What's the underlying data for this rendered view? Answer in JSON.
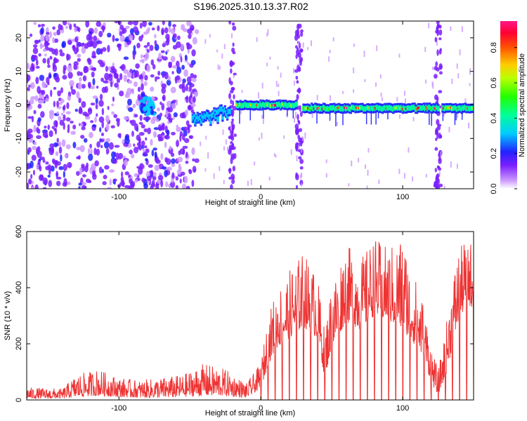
{
  "title": "S196.2025.310.13.37.R02",
  "chart_data": [
    {
      "type": "heatmap",
      "xlabel": "Height of straight line (km)",
      "ylabel": "Frequency (Hz)",
      "xlim": [
        -165,
        150
      ],
      "ylim": [
        -25,
        25
      ],
      "x_ticks": [
        -100,
        0,
        100
      ],
      "y_ticks": [
        -20,
        -10,
        0,
        10,
        20
      ],
      "colorbar": {
        "label": "Normalized spectral amplitude",
        "range": [
          0,
          0.95
        ],
        "ticks": [
          0,
          0.2,
          0.4,
          0.6,
          0.8
        ]
      },
      "noise_region": [
        -165,
        -45
      ],
      "signal_segments": [
        {
          "x": [
            -48,
            -22
          ],
          "freq": [
            -5,
            -2
          ],
          "level": 0.3
        },
        {
          "x": [
            -17,
            25
          ],
          "freq": [
            0,
            0
          ],
          "level": 0.9
        },
        {
          "x": [
            30,
            125
          ],
          "freq": [
            -1,
            -1
          ],
          "level": 0.85
        },
        {
          "x": [
            128,
            150
          ],
          "freq": [
            -1,
            -1
          ],
          "level": 0.9
        }
      ],
      "blob_cluster": {
        "x": [
          -85,
          -75
        ],
        "freq": [
          -3,
          3
        ],
        "level": 0.35
      },
      "vertical_stripes": [
        -20,
        27,
        125
      ]
    },
    {
      "type": "line",
      "xlabel": "Height of straight line (km)",
      "ylabel": "SNR (10 * v/v)",
      "xlim": [
        -165,
        150
      ],
      "ylim": [
        0,
        600
      ],
      "x_ticks": [
        -100,
        0,
        100
      ],
      "y_ticks": [
        0,
        200,
        400,
        600
      ],
      "color": "#ee3333",
      "envelope": [
        {
          "x": -165,
          "base": 5,
          "peak": 45
        },
        {
          "x": -140,
          "base": 5,
          "peak": 40
        },
        {
          "x": -130,
          "base": 10,
          "peak": 90
        },
        {
          "x": -115,
          "base": 15,
          "peak": 110
        },
        {
          "x": -100,
          "base": 10,
          "peak": 80
        },
        {
          "x": -85,
          "base": 8,
          "peak": 70
        },
        {
          "x": -70,
          "base": 8,
          "peak": 80
        },
        {
          "x": -55,
          "base": 10,
          "peak": 90
        },
        {
          "x": -40,
          "base": 15,
          "peak": 130
        },
        {
          "x": -25,
          "base": 15,
          "peak": 110
        },
        {
          "x": -10,
          "base": 8,
          "peak": 60
        },
        {
          "x": 0,
          "base": 40,
          "peak": 130
        },
        {
          "x": 5,
          "base": 120,
          "peak": 290
        },
        {
          "x": 10,
          "base": 180,
          "peak": 380
        },
        {
          "x": 20,
          "base": 220,
          "peak": 460
        },
        {
          "x": 30,
          "base": 260,
          "peak": 530
        },
        {
          "x": 40,
          "base": 220,
          "peak": 440
        },
        {
          "x": 45,
          "base": 80,
          "peak": 250
        },
        {
          "x": 50,
          "base": 180,
          "peak": 420
        },
        {
          "x": 60,
          "base": 280,
          "peak": 560
        },
        {
          "x": 70,
          "base": 250,
          "peak": 500
        },
        {
          "x": 80,
          "base": 300,
          "peak": 580
        },
        {
          "x": 90,
          "base": 280,
          "peak": 540
        },
        {
          "x": 100,
          "base": 250,
          "peak": 590
        },
        {
          "x": 108,
          "base": 200,
          "peak": 450
        },
        {
          "x": 115,
          "base": 150,
          "peak": 350
        },
        {
          "x": 120,
          "base": 60,
          "peak": 200
        },
        {
          "x": 125,
          "base": 20,
          "peak": 100
        },
        {
          "x": 130,
          "base": 80,
          "peak": 250
        },
        {
          "x": 138,
          "base": 250,
          "peak": 520
        },
        {
          "x": 145,
          "base": 350,
          "peak": 580
        },
        {
          "x": 150,
          "base": 320,
          "peak": 560
        }
      ],
      "dropout_start": 0,
      "dropout_spacing_km": 5
    }
  ]
}
